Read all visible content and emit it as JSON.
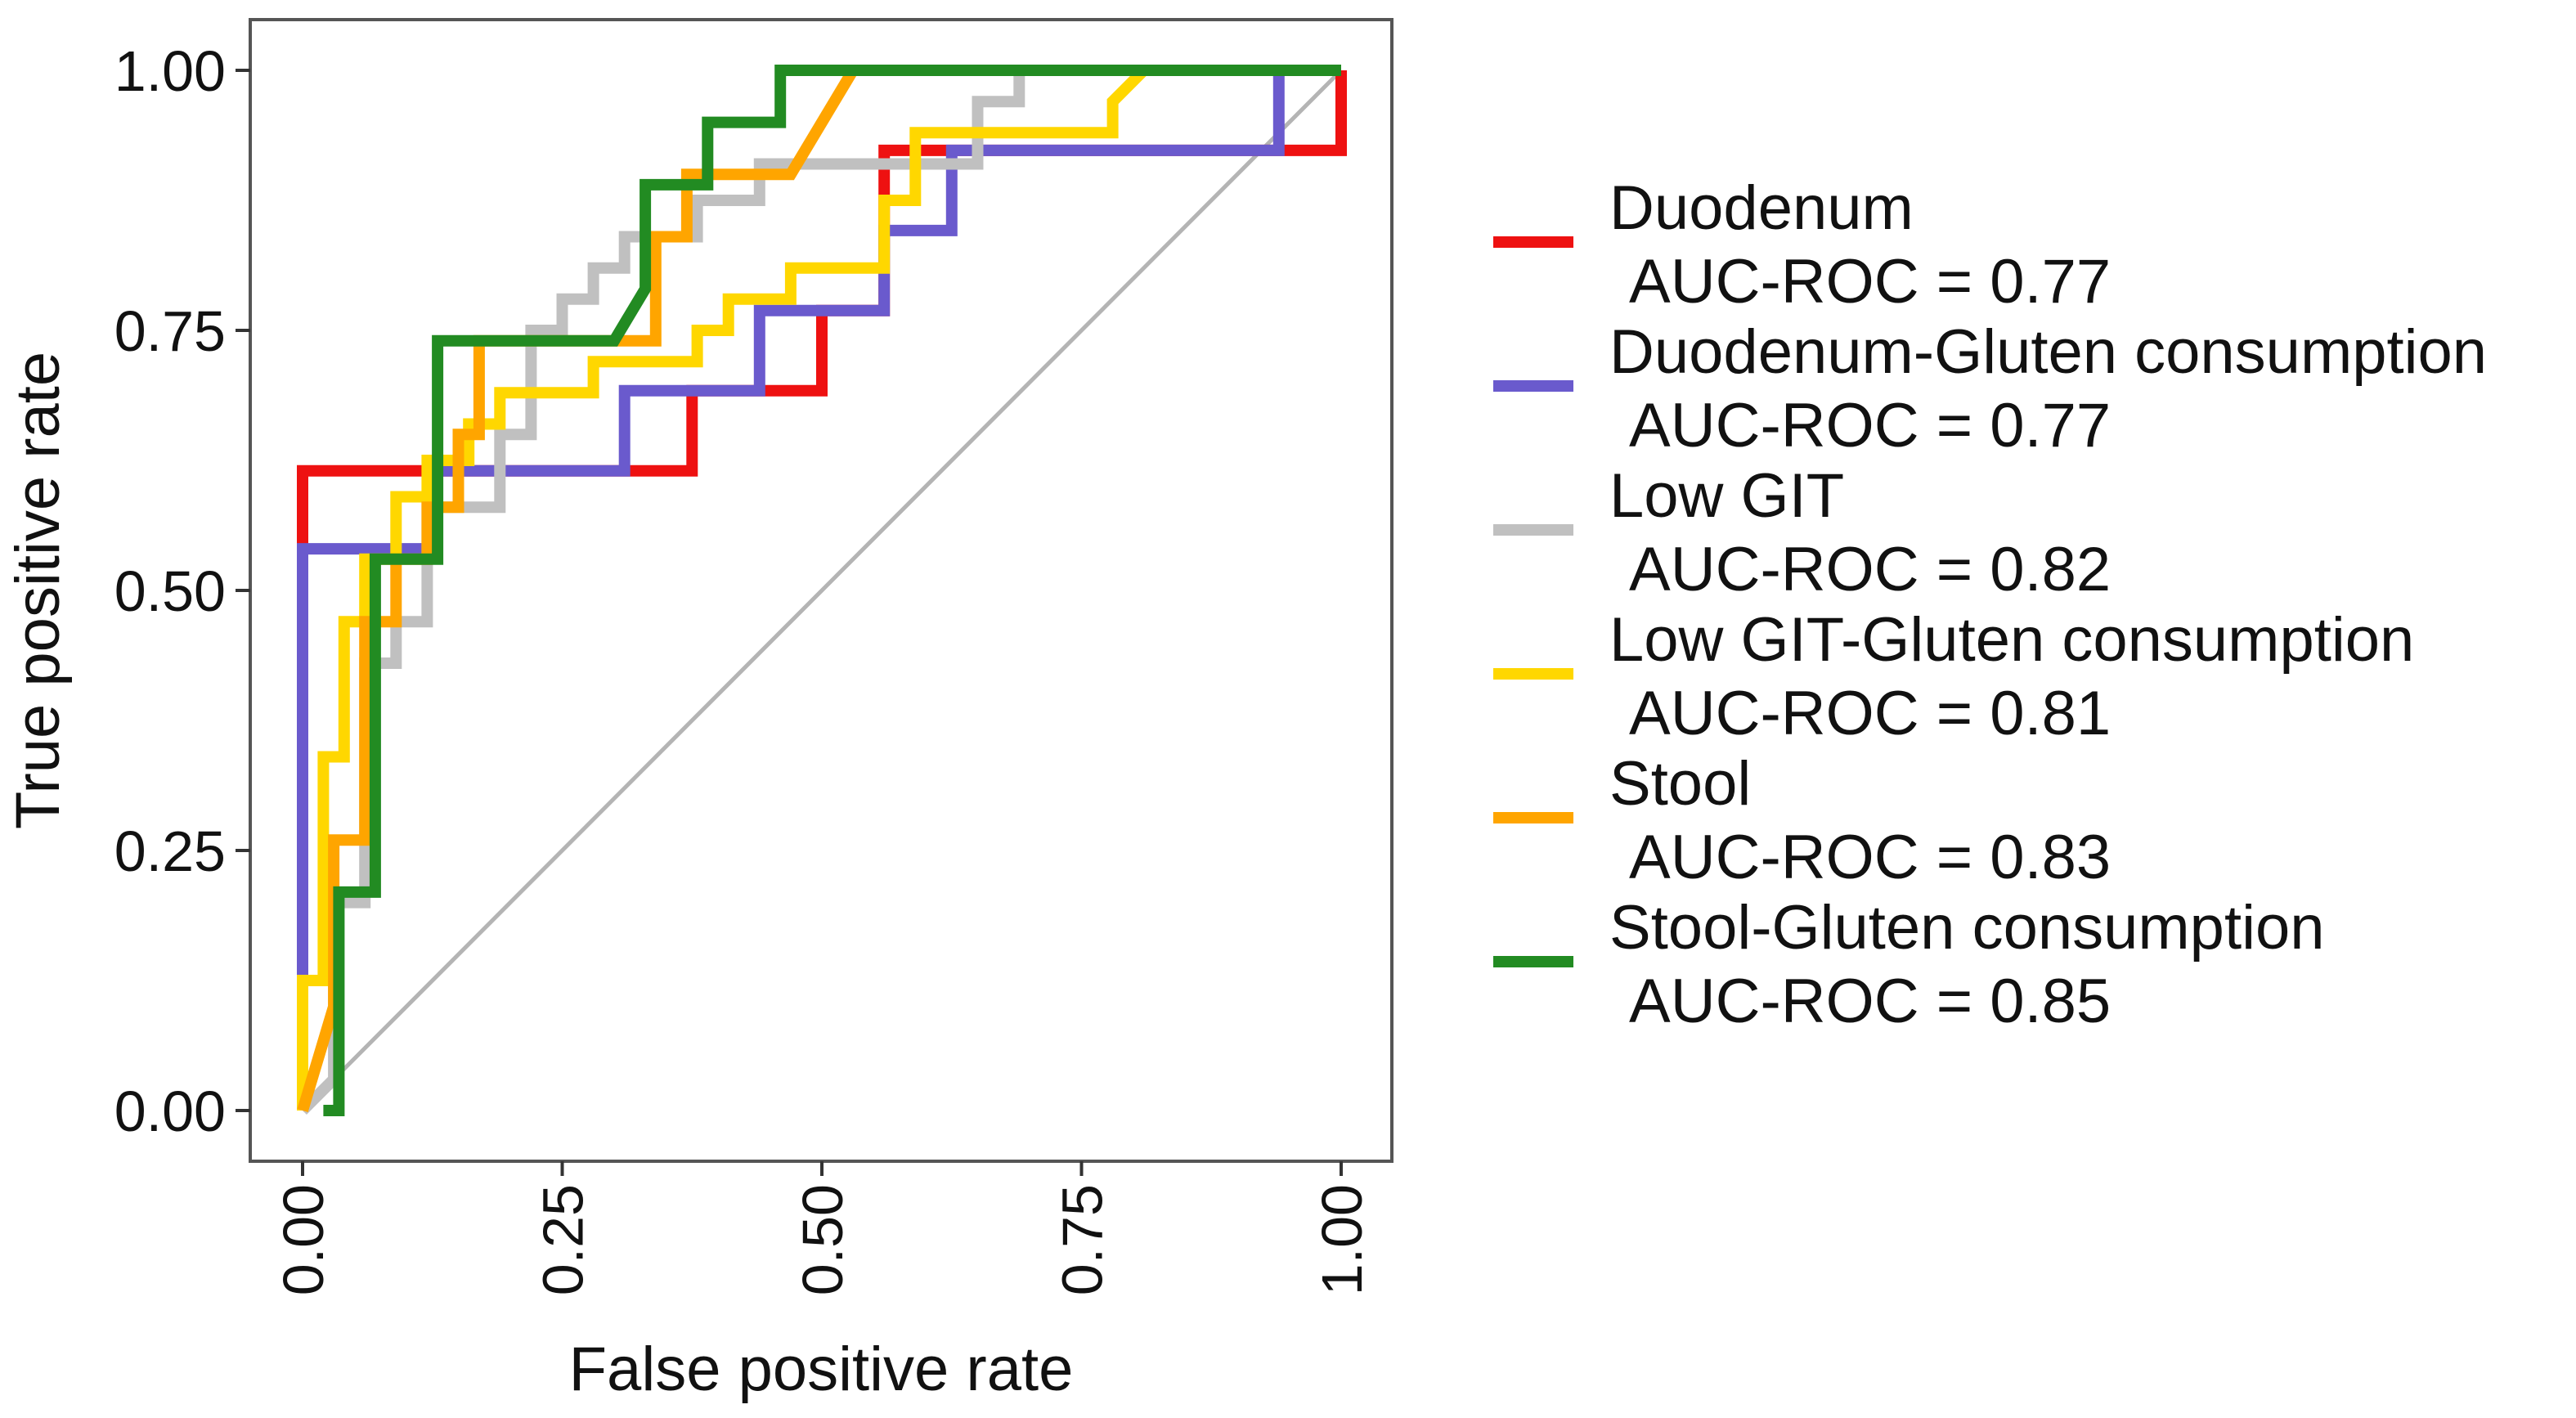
{
  "chart_data": {
    "type": "line",
    "title": "",
    "xlabel": "False positive rate",
    "ylabel": "True positive rate",
    "xlim": [
      0,
      1
    ],
    "ylim": [
      0,
      1
    ],
    "x_ticks": [
      "0.00",
      "0.25",
      "0.50",
      "0.75",
      "1.00"
    ],
    "y_ticks": [
      "0.00",
      "0.25",
      "0.50",
      "0.75",
      "1.00"
    ],
    "grid": false,
    "reference_line": {
      "x": [
        0,
        1
      ],
      "y": [
        0,
        1
      ],
      "color": "#b4b4b4"
    },
    "legend_position": "right",
    "series": [
      {
        "name": "Duodenum",
        "auc_label": "AUC-ROC = 0.77",
        "color": "#ee1111",
        "x": [
          0,
          0,
          0.375,
          0.375,
          0.44,
          0.44,
          0.5,
          0.5,
          0.56,
          0.56,
          1.0,
          1.0
        ],
        "y": [
          0,
          0.615,
          0.615,
          0.692,
          0.692,
          0.692,
          0.692,
          0.769,
          0.769,
          0.923,
          0.923,
          1.0
        ]
      },
      {
        "name": "Duodenum-Gluten consumption",
        "auc_label": "AUC-ROC = 0.77",
        "color": "#6a5acd",
        "x": [
          0,
          0,
          0.125,
          0.125,
          0.31,
          0.31,
          0.44,
          0.44,
          0.56,
          0.56,
          0.625,
          0.625,
          0.94,
          0.94,
          1.0
        ],
        "y": [
          0.13,
          0.54,
          0.54,
          0.615,
          0.615,
          0.692,
          0.692,
          0.769,
          0.769,
          0.846,
          0.846,
          0.923,
          0.923,
          1.0,
          1.0
        ]
      },
      {
        "name": "Low GIT",
        "auc_label": "AUC-ROC = 0.82",
        "color": "#c0c0c0",
        "x": [
          0,
          0.03,
          0.03,
          0.06,
          0.06,
          0.09,
          0.09,
          0.12,
          0.12,
          0.19,
          0.19,
          0.22,
          0.22,
          0.25,
          0.25,
          0.28,
          0.28,
          0.31,
          0.31,
          0.34,
          0.34,
          0.38,
          0.38,
          0.41,
          0.41,
          0.44,
          0.44,
          0.65,
          0.65,
          0.69,
          0.69,
          1.0
        ],
        "y": [
          0,
          0.03,
          0.2,
          0.2,
          0.43,
          0.43,
          0.47,
          0.47,
          0.58,
          0.58,
          0.65,
          0.65,
          0.75,
          0.75,
          0.78,
          0.78,
          0.81,
          0.81,
          0.84,
          0.84,
          0.84,
          0.84,
          0.875,
          0.875,
          0.875,
          0.875,
          0.91,
          0.91,
          0.97,
          0.97,
          1.0,
          1.0
        ]
      },
      {
        "name": "Low GIT-Gluten consumption",
        "auc_label": "AUC-ROC = 0.81",
        "color": "#ffd700",
        "x": [
          0,
          0,
          0.02,
          0.02,
          0.04,
          0.04,
          0.06,
          0.06,
          0.09,
          0.09,
          0.12,
          0.12,
          0.16,
          0.16,
          0.19,
          0.19,
          0.24,
          0.24,
          0.28,
          0.28,
          0.38,
          0.38,
          0.41,
          0.41,
          0.47,
          0.47,
          0.56,
          0.56,
          0.59,
          0.59,
          0.78,
          0.78,
          0.81,
          1.0
        ],
        "y": [
          0,
          0.125,
          0.125,
          0.34,
          0.34,
          0.47,
          0.47,
          0.53,
          0.53,
          0.59,
          0.59,
          0.625,
          0.625,
          0.66,
          0.66,
          0.69,
          0.69,
          0.69,
          0.69,
          0.72,
          0.72,
          0.75,
          0.75,
          0.78,
          0.78,
          0.81,
          0.81,
          0.875,
          0.875,
          0.94,
          0.94,
          0.97,
          1.0,
          1.0
        ]
      },
      {
        "name": "Stool",
        "auc_label": "AUC-ROC = 0.83",
        "color": "#ffa500",
        "x": [
          0,
          0.03,
          0.03,
          0.06,
          0.06,
          0.09,
          0.09,
          0.12,
          0.12,
          0.15,
          0.15,
          0.17,
          0.17,
          0.31,
          0.31,
          0.34,
          0.34,
          0.37,
          0.37,
          0.47,
          0.5,
          0.53,
          1.0
        ],
        "y": [
          0,
          0.1,
          0.26,
          0.26,
          0.47,
          0.47,
          0.53,
          0.53,
          0.58,
          0.58,
          0.65,
          0.65,
          0.74,
          0.74,
          0.74,
          0.74,
          0.84,
          0.84,
          0.9,
          0.9,
          0.95,
          1.0,
          1.0
        ]
      },
      {
        "name": "Stool-Gluten consumption",
        "auc_label": "AUC-ROC = 0.85",
        "color": "#228b22",
        "x": [
          0.02,
          0.035,
          0.035,
          0.07,
          0.07,
          0.13,
          0.13,
          0.3,
          0.3,
          0.33,
          0.33,
          0.39,
          0.39,
          0.46,
          0.46,
          1.0
        ],
        "y": [
          0,
          0,
          0.21,
          0.21,
          0.53,
          0.53,
          0.74,
          0.74,
          0.74,
          0.79,
          0.89,
          0.89,
          0.95,
          0.95,
          1.0,
          1.0
        ]
      }
    ]
  }
}
